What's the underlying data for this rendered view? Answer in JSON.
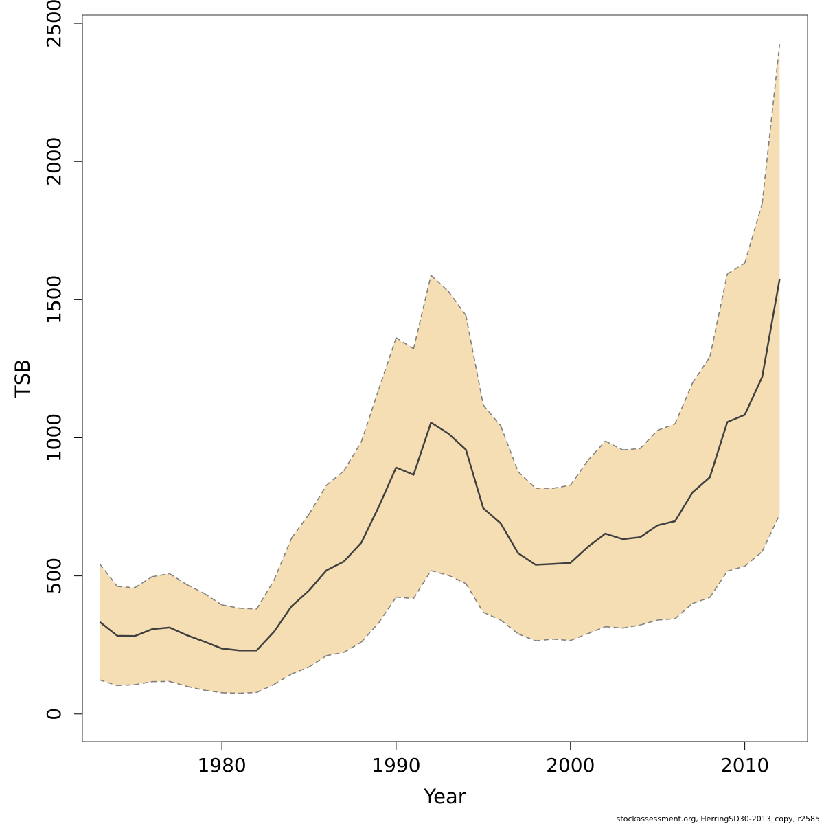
{
  "chart_data": {
    "type": "area",
    "xlabel": "Year",
    "ylabel": "TSB",
    "xlim": [
      1972,
      2013.6
    ],
    "ylim": [
      -100,
      2530
    ],
    "xticks": [
      1980,
      1990,
      2000,
      2010
    ],
    "yticks": [
      0,
      500,
      1000,
      1500,
      2000,
      2500
    ],
    "grid": false,
    "legend": "none",
    "colors": {
      "band": "#F5DEB3",
      "estimate": "#404040",
      "bounds": "#808080",
      "box": "#333333"
    },
    "x": [
      1973,
      1974,
      1975,
      1976,
      1977,
      1978,
      1979,
      1980,
      1981,
      1982,
      1983,
      1984,
      1985,
      1986,
      1987,
      1988,
      1989,
      1990,
      1991,
      1992,
      1993,
      1994,
      1995,
      1996,
      1997,
      1998,
      1999,
      2000,
      2001,
      2002,
      2003,
      2004,
      2005,
      2006,
      2007,
      2008,
      2009,
      2010,
      2011,
      2012
    ],
    "series": [
      {
        "role": "estimate",
        "values": [
          333,
          283,
          282,
          307,
          313,
          285,
          262,
          237,
          230,
          230,
          298,
          390,
          447,
          520,
          552,
          620,
          750,
          892,
          866,
          1055,
          1015,
          957,
          745,
          690,
          582,
          540,
          543,
          547,
          605,
          653,
          633,
          640,
          683,
          698,
          802,
          857,
          1057,
          1083,
          1220,
          1575
        ]
      },
      {
        "role": "upper",
        "values": [
          543,
          462,
          457,
          497,
          508,
          468,
          436,
          395,
          383,
          380,
          485,
          637,
          723,
          828,
          880,
          985,
          1175,
          1362,
          1322,
          1588,
          1530,
          1443,
          1118,
          1043,
          877,
          817,
          817,
          828,
          918,
          988,
          956,
          961,
          1027,
          1050,
          1198,
          1293,
          1593,
          1632,
          1848,
          2425
        ]
      },
      {
        "role": "lower",
        "values": [
          123,
          103,
          106,
          117,
          118,
          100,
          86,
          77,
          75,
          78,
          107,
          145,
          170,
          211,
          223,
          260,
          330,
          423,
          418,
          519,
          502,
          472,
          368,
          340,
          290,
          265,
          271,
          266,
          291,
          316,
          311,
          322,
          340,
          345,
          400,
          422,
          517,
          535,
          588,
          722
        ]
      }
    ],
    "annotations": [
      "stockassessment.org, HerringSD30-2013_copy, r2585"
    ]
  }
}
